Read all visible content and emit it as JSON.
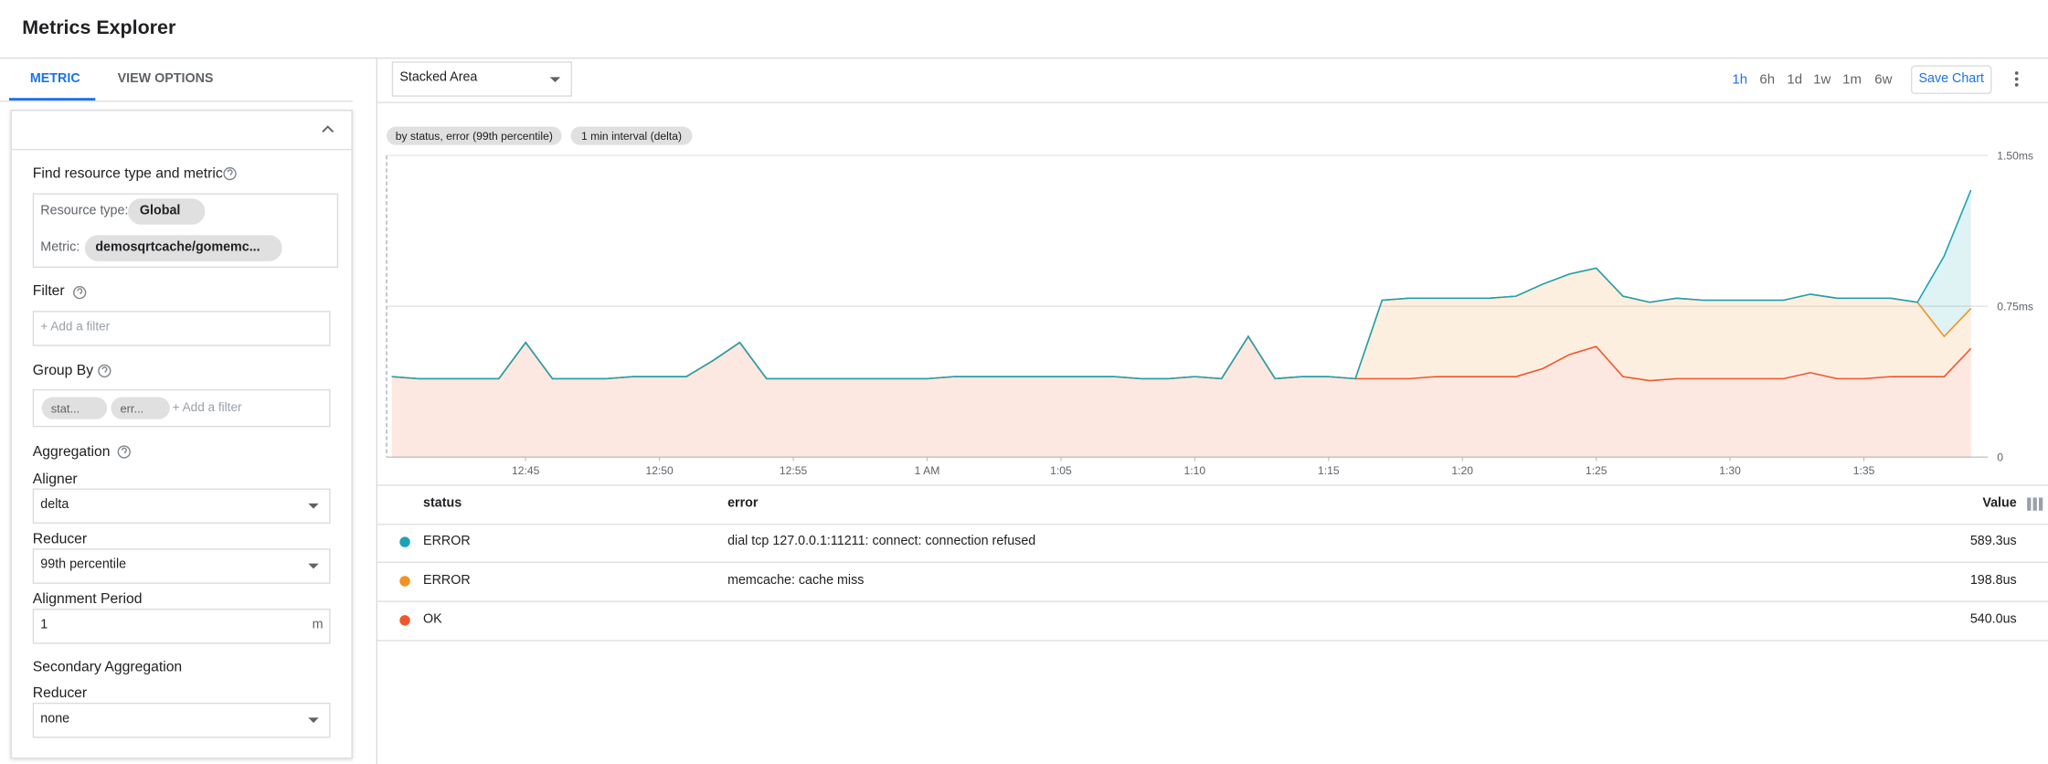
{
  "header": {
    "title": "Metrics Explorer"
  },
  "tabs": [
    "METRIC",
    "VIEW OPTIONS"
  ],
  "metric_panel": {
    "find_label": "Find resource type and metric",
    "resource_type_label": "Resource type:",
    "resource_type": "Global",
    "metric_label": "Metric:",
    "metric": "demosqrtcache/gomemc...",
    "filter_label": "Filter",
    "filter_placeholder": "+ Add a filter",
    "group_by_label": "Group By",
    "group_by_chips": [
      "stat...",
      "err..."
    ],
    "group_by_placeholder": "+ Add a filter",
    "aggregation_label": "Aggregation",
    "aligner_label": "Aligner",
    "aligner": "delta",
    "reducer_label": "Reducer",
    "reducer": "99th percentile",
    "alignment_period_label": "Alignment Period",
    "alignment_period": "1",
    "alignment_period_unit": "m",
    "secondary_label": "Secondary Aggregation",
    "secondary_reducer_label": "Reducer",
    "secondary_reducer": "none"
  },
  "toolbar": {
    "chart_type": "Stacked Area",
    "ranges": [
      "1h",
      "6h",
      "1d",
      "1w",
      "1m",
      "6w"
    ],
    "save": "Save Chart"
  },
  "chart_data": {
    "type": "stacked-area",
    "annotations": [
      "by status, error (99th percentile)",
      "1 min interval (delta)"
    ],
    "x": [
      "12:40",
      "12:41",
      "12:42",
      "12:43",
      "12:44",
      "12:45",
      "12:46",
      "12:47",
      "12:48",
      "12:49",
      "12:50",
      "12:51",
      "12:52",
      "12:53",
      "12:54",
      "12:55",
      "12:56",
      "12:57",
      "12:58",
      "12:59",
      "1:00",
      "1:01",
      "1:02",
      "1:03",
      "1:04",
      "1:05",
      "1:06",
      "1:07",
      "1:08",
      "1:09",
      "1:10",
      "1:11",
      "1:12",
      "1:13",
      "1:14",
      "1:15",
      "1:16",
      "1:17",
      "1:18",
      "1:19",
      "1:20",
      "1:21",
      "1:22",
      "1:23",
      "1:24",
      "1:25",
      "1:26",
      "1:27",
      "1:28",
      "1:29",
      "1:30",
      "1:31",
      "1:32",
      "1:33",
      "1:34",
      "1:35",
      "1:36",
      "1:37",
      "1:38",
      "1:39"
    ],
    "xlim": [
      "12:40",
      "1:39"
    ],
    "xticks": [
      "12:45",
      "12:50",
      "12:55",
      {
        "value": "1:00",
        "label": "1 AM"
      },
      "1:05",
      "1:10",
      "1:15",
      "1:20",
      "1:25",
      "1:30",
      "1:35"
    ],
    "ylim": [
      0,
      1.5
    ],
    "yticks": [
      0,
      {
        "value": 0.75,
        "label": "0.75ms"
      },
      {
        "value": 1.5,
        "label": "1.50ms"
      }
    ],
    "grid": true,
    "series": [
      {
        "color": "#1ba3b3",
        "values": [
          0,
          0,
          0,
          0,
          0,
          0,
          0,
          0,
          0,
          0,
          0,
          0,
          0,
          0,
          0,
          0,
          0,
          0,
          0,
          0,
          0,
          0,
          0,
          0,
          0,
          0,
          0,
          0,
          0,
          0,
          0,
          0,
          0,
          0,
          0,
          0,
          0,
          0,
          0,
          0,
          0,
          0,
          0,
          0,
          0,
          0,
          0,
          0,
          0,
          0,
          0,
          0,
          0,
          0,
          0,
          0,
          0,
          0,
          0.4,
          0.589
        ]
      },
      {
        "color": "#f39122",
        "values": [
          0,
          0,
          0,
          0,
          0,
          0,
          0,
          0,
          0,
          0,
          0,
          0,
          0,
          0,
          0,
          0,
          0,
          0,
          0,
          0,
          0,
          0,
          0,
          0,
          0,
          0,
          0,
          0,
          0,
          0,
          0,
          0,
          0,
          0,
          0,
          0,
          0,
          0.39,
          0.4,
          0.39,
          0.39,
          0.39,
          0.4,
          0.42,
          0.4,
          0.39,
          0.4,
          0.39,
          0.4,
          0.39,
          0.39,
          0.39,
          0.39,
          0.39,
          0.4,
          0.4,
          0.39,
          0.37,
          0.2,
          0.199
        ]
      },
      {
        "color": "#f0562c",
        "values": [
          0.4,
          0.39,
          0.39,
          0.39,
          0.39,
          0.57,
          0.39,
          0.39,
          0.39,
          0.4,
          0.4,
          0.4,
          0.48,
          0.57,
          0.39,
          0.39,
          0.39,
          0.39,
          0.39,
          0.39,
          0.39,
          0.4,
          0.4,
          0.4,
          0.4,
          0.4,
          0.4,
          0.4,
          0.39,
          0.39,
          0.4,
          0.39,
          0.6,
          0.39,
          0.4,
          0.4,
          0.39,
          0.39,
          0.39,
          0.4,
          0.4,
          0.4,
          0.4,
          0.44,
          0.51,
          0.55,
          0.4,
          0.38,
          0.39,
          0.39,
          0.39,
          0.39,
          0.39,
          0.42,
          0.39,
          0.39,
          0.4,
          0.4,
          0.4,
          0.54
        ]
      }
    ]
  },
  "table": {
    "columns": [
      "status",
      "error",
      "Value"
    ],
    "rows": [
      [
        "ERROR",
        "dial tcp 127.0.0.1:11211: connect: connection refused",
        "589.3us"
      ],
      [
        "ERROR",
        "memcache: cache miss",
        "198.8us"
      ],
      [
        "OK",
        "",
        "540.0us"
      ]
    ]
  }
}
